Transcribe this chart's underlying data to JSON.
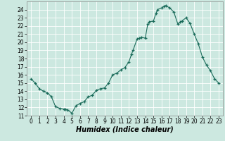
{
  "x": [
    0,
    0.5,
    1,
    1.5,
    2,
    2.5,
    3,
    3.5,
    4,
    4.2,
    4.5,
    5,
    5.5,
    6,
    6.5,
    7,
    7.5,
    8,
    8.5,
    9,
    9.5,
    10,
    10.5,
    11,
    11.5,
    12,
    12.3,
    12.5,
    13,
    13.3,
    13.5,
    14,
    14.3,
    14.5,
    15,
    15.3,
    15.5,
    16,
    16.3,
    16.5,
    17,
    17.5,
    18,
    18.3,
    18.5,
    19,
    19.5,
    20,
    20.5,
    21,
    21.5,
    22,
    22.5,
    23
  ],
  "y": [
    15.5,
    15.0,
    14.3,
    14.0,
    13.8,
    13.3,
    12.1,
    11.9,
    11.8,
    11.75,
    11.7,
    11.3,
    12.2,
    12.5,
    12.7,
    13.3,
    13.5,
    14.1,
    14.3,
    14.4,
    15.0,
    16.0,
    16.2,
    16.6,
    16.9,
    17.6,
    18.5,
    19.0,
    20.4,
    20.5,
    20.6,
    20.5,
    22.2,
    22.5,
    22.6,
    23.5,
    24.0,
    24.2,
    24.4,
    24.5,
    24.2,
    23.7,
    22.2,
    22.5,
    22.6,
    23.0,
    22.3,
    21.0,
    19.8,
    18.2,
    17.2,
    16.5,
    15.5,
    15.0
  ],
  "xlabel": "Humidex (Indice chaleur)",
  "xlim": [
    -0.5,
    23.5
  ],
  "ylim": [
    11,
    25
  ],
  "yticks": [
    11,
    12,
    13,
    14,
    15,
    16,
    17,
    18,
    19,
    20,
    21,
    22,
    23,
    24
  ],
  "xticks": [
    0,
    1,
    2,
    3,
    4,
    5,
    6,
    7,
    8,
    9,
    10,
    11,
    12,
    13,
    14,
    15,
    16,
    17,
    18,
    19,
    20,
    21,
    22,
    23
  ],
  "line_color": "#1a6b5a",
  "marker": "+",
  "bg_color": "#cce8e0",
  "grid_color": "#b8d8d0",
  "tick_fontsize": 5.5,
  "xlabel_fontsize": 7,
  "linewidth": 0.8,
  "markersize": 3.5,
  "markeredgewidth": 0.9
}
